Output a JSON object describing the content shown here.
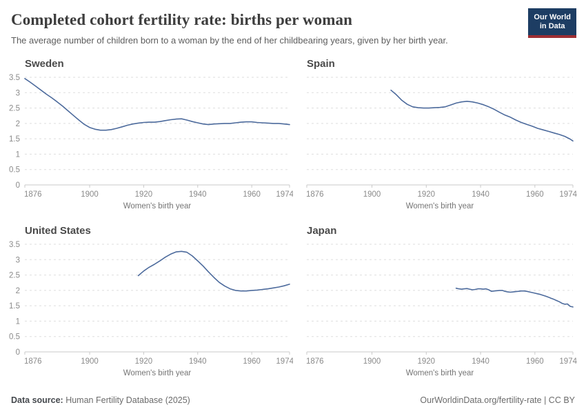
{
  "header": {
    "title": "Completed cohort fertility rate: births per woman",
    "subtitle": "The average number of children born to a woman by the end of her childbearing years, given by her birth year.",
    "logo": {
      "line1": "Our World",
      "line2": "in Data",
      "bg_color": "#1d3d63",
      "accent_color": "#9e2f33"
    }
  },
  "footer": {
    "source_label": "Data source:",
    "source_text": " Human Fertility Database (2025)",
    "citation": "OurWorldinData.org/fertility-rate | CC BY"
  },
  "colors": {
    "line": "#4c6a9c",
    "grid": "#dddddd",
    "axis": "#c9c9c9",
    "tick_text": "#8a8a8a",
    "axis_title_text": "#757575"
  },
  "chart_data": [
    {
      "type": "line",
      "title": "Sweden",
      "xlabel": "Women's birth year",
      "xlim": [
        1876,
        1974
      ],
      "xticks": [
        1876,
        1900,
        1920,
        1940,
        1960,
        1974
      ],
      "ylim": [
        0,
        3.5
      ],
      "yticks": [
        0,
        0.5,
        1,
        1.5,
        2,
        2.5,
        3,
        3.5
      ],
      "show_y_labels": true,
      "points": [
        [
          1876,
          3.46
        ],
        [
          1878,
          3.34
        ],
        [
          1880,
          3.21
        ],
        [
          1882,
          3.08
        ],
        [
          1884,
          2.95
        ],
        [
          1886,
          2.83
        ],
        [
          1888,
          2.7
        ],
        [
          1890,
          2.56
        ],
        [
          1892,
          2.41
        ],
        [
          1894,
          2.26
        ],
        [
          1896,
          2.11
        ],
        [
          1898,
          1.97
        ],
        [
          1900,
          1.87
        ],
        [
          1902,
          1.81
        ],
        [
          1904,
          1.78
        ],
        [
          1906,
          1.78
        ],
        [
          1908,
          1.8
        ],
        [
          1910,
          1.84
        ],
        [
          1912,
          1.89
        ],
        [
          1914,
          1.94
        ],
        [
          1916,
          1.98
        ],
        [
          1918,
          2.01
        ],
        [
          1920,
          2.03
        ],
        [
          1922,
          2.04
        ],
        [
          1924,
          2.04
        ],
        [
          1926,
          2.06
        ],
        [
          1928,
          2.09
        ],
        [
          1930,
          2.12
        ],
        [
          1932,
          2.14
        ],
        [
          1934,
          2.15
        ],
        [
          1936,
          2.11
        ],
        [
          1938,
          2.06
        ],
        [
          1940,
          2.02
        ],
        [
          1942,
          1.98
        ],
        [
          1944,
          1.96
        ],
        [
          1946,
          1.98
        ],
        [
          1948,
          1.99
        ],
        [
          1950,
          2.0
        ],
        [
          1952,
          2.0
        ],
        [
          1954,
          2.02
        ],
        [
          1956,
          2.04
        ],
        [
          1958,
          2.05
        ],
        [
          1960,
          2.05
        ],
        [
          1962,
          2.03
        ],
        [
          1964,
          2.02
        ],
        [
          1966,
          2.01
        ],
        [
          1968,
          2.0
        ],
        [
          1970,
          2.0
        ],
        [
          1972,
          1.98
        ],
        [
          1974,
          1.96
        ]
      ]
    },
    {
      "type": "line",
      "title": "Spain",
      "xlabel": "Women's birth year",
      "xlim": [
        1876,
        1974
      ],
      "xticks": [
        1876,
        1900,
        1920,
        1940,
        1960,
        1974
      ],
      "ylim": [
        0,
        3.5
      ],
      "yticks": [
        0,
        0.5,
        1,
        1.5,
        2,
        2.5,
        3,
        3.5
      ],
      "show_y_labels": false,
      "points": [
        [
          1907,
          3.08
        ],
        [
          1909,
          2.93
        ],
        [
          1911,
          2.75
        ],
        [
          1913,
          2.62
        ],
        [
          1915,
          2.54
        ],
        [
          1917,
          2.51
        ],
        [
          1919,
          2.5
        ],
        [
          1921,
          2.5
        ],
        [
          1923,
          2.51
        ],
        [
          1925,
          2.52
        ],
        [
          1927,
          2.54
        ],
        [
          1929,
          2.6
        ],
        [
          1931,
          2.66
        ],
        [
          1933,
          2.7
        ],
        [
          1935,
          2.72
        ],
        [
          1937,
          2.7
        ],
        [
          1939,
          2.66
        ],
        [
          1941,
          2.61
        ],
        [
          1943,
          2.54
        ],
        [
          1945,
          2.46
        ],
        [
          1947,
          2.36
        ],
        [
          1949,
          2.27
        ],
        [
          1951,
          2.2
        ],
        [
          1953,
          2.11
        ],
        [
          1955,
          2.03
        ],
        [
          1957,
          1.97
        ],
        [
          1959,
          1.91
        ],
        [
          1961,
          1.84
        ],
        [
          1963,
          1.79
        ],
        [
          1965,
          1.74
        ],
        [
          1967,
          1.69
        ],
        [
          1969,
          1.64
        ],
        [
          1971,
          1.58
        ],
        [
          1973,
          1.49
        ],
        [
          1974,
          1.43
        ]
      ]
    },
    {
      "type": "line",
      "title": "United States",
      "xlabel": "Women's birth year",
      "xlim": [
        1876,
        1974
      ],
      "xticks": [
        1876,
        1900,
        1920,
        1940,
        1960,
        1974
      ],
      "ylim": [
        0,
        3.5
      ],
      "yticks": [
        0,
        0.5,
        1,
        1.5,
        2,
        2.5,
        3,
        3.5
      ],
      "show_y_labels": true,
      "points": [
        [
          1918,
          2.48
        ],
        [
          1920,
          2.63
        ],
        [
          1922,
          2.75
        ],
        [
          1924,
          2.85
        ],
        [
          1926,
          2.96
        ],
        [
          1928,
          3.08
        ],
        [
          1930,
          3.18
        ],
        [
          1932,
          3.25
        ],
        [
          1934,
          3.27
        ],
        [
          1936,
          3.24
        ],
        [
          1938,
          3.12
        ],
        [
          1940,
          2.96
        ],
        [
          1942,
          2.79
        ],
        [
          1944,
          2.6
        ],
        [
          1946,
          2.42
        ],
        [
          1948,
          2.26
        ],
        [
          1950,
          2.14
        ],
        [
          1952,
          2.05
        ],
        [
          1954,
          2.0
        ],
        [
          1956,
          1.98
        ],
        [
          1958,
          1.98
        ],
        [
          1960,
          2.0
        ],
        [
          1962,
          2.01
        ],
        [
          1964,
          2.03
        ],
        [
          1966,
          2.05
        ],
        [
          1968,
          2.08
        ],
        [
          1970,
          2.11
        ],
        [
          1972,
          2.15
        ],
        [
          1974,
          2.2
        ]
      ]
    },
    {
      "type": "line",
      "title": "Japan",
      "xlabel": "Women's birth year",
      "xlim": [
        1876,
        1974
      ],
      "xticks": [
        1876,
        1900,
        1920,
        1940,
        1960,
        1974
      ],
      "ylim": [
        0,
        3.5
      ],
      "yticks": [
        0,
        0.5,
        1,
        1.5,
        2,
        2.5,
        3,
        3.5
      ],
      "show_y_labels": false,
      "points": [
        [
          1931,
          2.07
        ],
        [
          1932,
          2.05
        ],
        [
          1933,
          2.04
        ],
        [
          1934,
          2.05
        ],
        [
          1935,
          2.06
        ],
        [
          1936,
          2.04
        ],
        [
          1937,
          2.02
        ],
        [
          1938,
          2.03
        ],
        [
          1939,
          2.05
        ],
        [
          1940,
          2.05
        ],
        [
          1941,
          2.04
        ],
        [
          1942,
          2.05
        ],
        [
          1943,
          2.02
        ],
        [
          1944,
          1.97
        ],
        [
          1945,
          1.98
        ],
        [
          1946,
          1.99
        ],
        [
          1947,
          2.0
        ],
        [
          1948,
          2.0
        ],
        [
          1949,
          1.97
        ],
        [
          1950,
          1.95
        ],
        [
          1951,
          1.94
        ],
        [
          1952,
          1.95
        ],
        [
          1953,
          1.96
        ],
        [
          1954,
          1.97
        ],
        [
          1955,
          1.98
        ],
        [
          1956,
          1.98
        ],
        [
          1957,
          1.97
        ],
        [
          1958,
          1.95
        ],
        [
          1959,
          1.93
        ],
        [
          1960,
          1.91
        ],
        [
          1961,
          1.89
        ],
        [
          1962,
          1.87
        ],
        [
          1963,
          1.84
        ],
        [
          1964,
          1.81
        ],
        [
          1965,
          1.78
        ],
        [
          1966,
          1.74
        ],
        [
          1967,
          1.71
        ],
        [
          1968,
          1.67
        ],
        [
          1969,
          1.63
        ],
        [
          1970,
          1.58
        ],
        [
          1971,
          1.55
        ],
        [
          1972,
          1.56
        ],
        [
          1973,
          1.48
        ],
        [
          1974,
          1.46
        ]
      ]
    }
  ]
}
